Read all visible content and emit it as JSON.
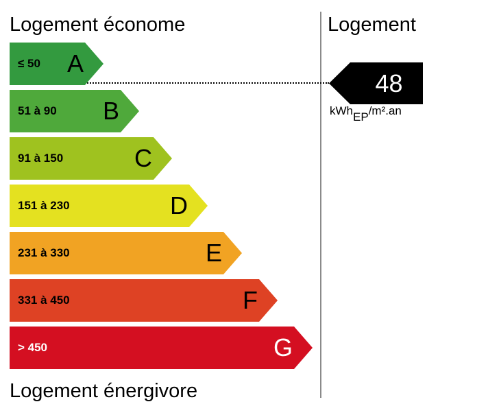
{
  "labels": {
    "top": "Logement économe",
    "bottom": "Logement énergivore",
    "right": "Logement"
  },
  "bands": [
    {
      "letter": "A",
      "range": "≤ 50",
      "color": "#339a3f",
      "text_color": "#000000"
    },
    {
      "letter": "B",
      "range": "51 à 90",
      "color": "#4fa93b",
      "text_color": "#000000"
    },
    {
      "letter": "C",
      "range": "91 à 150",
      "color": "#9fc21f",
      "text_color": "#000000"
    },
    {
      "letter": "D",
      "range": "151 à 230",
      "color": "#e4e120",
      "text_color": "#000000"
    },
    {
      "letter": "E",
      "range": "231 à 330",
      "color": "#f1a323",
      "text_color": "#000000"
    },
    {
      "letter": "F",
      "range": "331 à 450",
      "color": "#de4224",
      "text_color": "#000000"
    },
    {
      "letter": "G",
      "range": "> 450",
      "color": "#d40f21",
      "text_color": "#ffffff"
    }
  ],
  "current": {
    "value": "48",
    "class": "A",
    "unit_main": "kWh",
    "unit_sub": "EP",
    "unit_rest": "/m².an"
  }
}
